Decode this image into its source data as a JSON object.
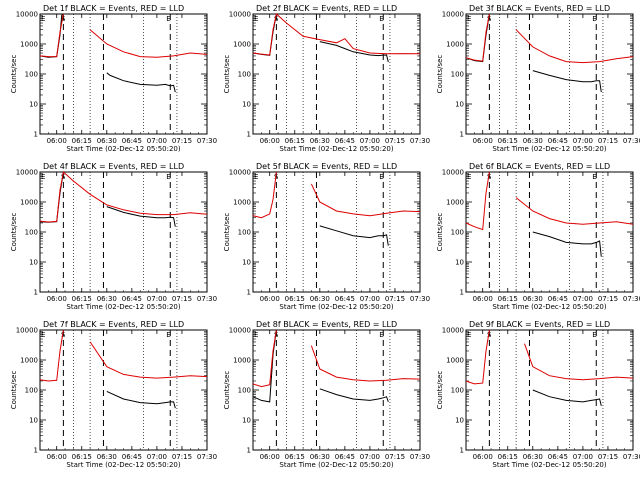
{
  "chart_data": [
    {
      "type": "line",
      "title": "Det 1f BLACK = Events, RED = LLD",
      "xlabel": "Start Time (02-Dec-12 05:50:20)",
      "ylabel": "Counts/sec",
      "yscale": "log",
      "ylim": [
        1,
        10000
      ],
      "xlim": [
        "05:50",
        "07:30"
      ],
      "x_ticks": [
        "06:00",
        "06:15",
        "06:30",
        "06:45",
        "07:00",
        "07:15",
        "07:30"
      ],
      "y_ticks": [
        "1",
        "10",
        "100",
        "1000",
        "10000"
      ],
      "markers": [
        {
          "label": "E",
          "x": "05:50"
        },
        {
          "label": "S",
          "x": "06:02"
        },
        {
          "label": "E",
          "x": "07:05"
        }
      ],
      "series": [
        {
          "color": "#000000",
          "x": [
            "05:50",
            "05:55",
            "06:00",
            "06:02",
            "06:03",
            "06:04",
            "06:10",
            "06:20",
            "06:25",
            "06:27",
            "06:30",
            "06:32",
            "06:40",
            "06:50",
            "07:00",
            "07:05",
            "07:08",
            "07:10",
            "07:11"
          ],
          "y": [
            400,
            360,
            380,
            2000,
            9000,
            12000,
            null,
            null,
            null,
            null,
            110,
            90,
            60,
            45,
            42,
            45,
            40,
            42,
            25
          ]
        },
        {
          "color": "#dd0000",
          "x": [
            "05:50",
            "05:55",
            "06:00",
            "06:02",
            "06:04",
            "06:10",
            "06:20",
            "06:30",
            "06:40",
            "06:50",
            "07:00",
            "07:10",
            "07:20",
            "07:30"
          ],
          "y": [
            400,
            380,
            380,
            2500,
            12000,
            null,
            3000,
            1000,
            550,
            380,
            360,
            400,
            500,
            450
          ]
        }
      ]
    },
    {
      "type": "line",
      "title": "Det 2f BLACK = Events, RED = LLD",
      "xlabel": "Start Time (02-Dec-12 05:50:20)",
      "ylabel": "Counts/sec",
      "yscale": "log",
      "ylim": [
        1,
        10000
      ],
      "xlim": [
        "05:50",
        "07:30"
      ],
      "x_ticks": [
        "06:00",
        "06:15",
        "06:30",
        "06:45",
        "07:00",
        "07:15",
        "07:30"
      ],
      "y_ticks": [
        "1",
        "10",
        "100",
        "1000",
        "10000"
      ],
      "markers": [
        {
          "label": "E",
          "x": "05:50"
        },
        {
          "label": "S",
          "x": "06:02"
        },
        {
          "label": "E",
          "x": "07:05"
        }
      ],
      "series": [
        {
          "color": "#000000",
          "x": [
            "05:50",
            "05:55",
            "06:00",
            "06:02",
            "06:04",
            "06:25",
            "06:27",
            "06:30",
            "06:40",
            "06:45",
            "06:50",
            "07:00",
            "07:05",
            "07:07",
            "07:10",
            "07:11"
          ],
          "y": [
            500,
            450,
            420,
            2500,
            12000,
            null,
            null,
            1200,
            900,
            700,
            550,
            430,
            410,
            420,
            430,
            250
          ]
        },
        {
          "color": "#dd0000",
          "x": [
            "05:50",
            "05:55",
            "06:00",
            "06:02",
            "06:04",
            "06:10",
            "06:20",
            "06:30",
            "06:40",
            "06:45",
            "06:50",
            "07:00",
            "07:10",
            "07:20",
            "07:30"
          ],
          "y": [
            500,
            460,
            430,
            3000,
            12000,
            5000,
            1800,
            1400,
            1100,
            1500,
            700,
            500,
            470,
            480,
            470
          ]
        }
      ]
    },
    {
      "type": "line",
      "title": "Det 3f BLACK = Events, RED = LLD",
      "xlabel": "Start Time (02-Dec-12 05:50:20)",
      "ylabel": "Counts/sec",
      "yscale": "log",
      "ylim": [
        1,
        10000
      ],
      "xlim": [
        "05:50",
        "07:30"
      ],
      "x_ticks": [
        "06:00",
        "06:15",
        "06:30",
        "06:45",
        "07:00",
        "07:15",
        "07:30"
      ],
      "y_ticks": [
        "1",
        "10",
        "100",
        "1000",
        "10000"
      ],
      "markers": [
        {
          "label": "E",
          "x": "05:50"
        },
        {
          "label": "S",
          "x": "06:02"
        },
        {
          "label": "E",
          "x": "07:05"
        }
      ],
      "series": [
        {
          "color": "#000000",
          "x": [
            "05:50",
            "05:55",
            "06:00",
            "06:02",
            "06:04",
            "06:25",
            "06:27",
            "06:30",
            "06:40",
            "06:50",
            "07:00",
            "07:05",
            "07:08",
            "07:10",
            "07:11"
          ],
          "y": [
            350,
            280,
            260,
            2000,
            12000,
            null,
            null,
            130,
            90,
            65,
            55,
            55,
            60,
            60,
            25
          ]
        },
        {
          "color": "#dd0000",
          "x": [
            "05:50",
            "05:55",
            "06:00",
            "06:02",
            "06:04",
            "06:10",
            "06:20",
            "06:30",
            "06:40",
            "06:50",
            "07:00",
            "07:10",
            "07:20",
            "07:30"
          ],
          "y": [
            350,
            290,
            270,
            2500,
            12000,
            null,
            3000,
            800,
            400,
            260,
            240,
            260,
            320,
            380
          ]
        }
      ]
    },
    {
      "type": "line",
      "title": "Det 4f BLACK = Events, RED = LLD",
      "xlabel": "Start Time (02-Dec-12 05:50:20)",
      "ylabel": "Counts/sec",
      "yscale": "log",
      "ylim": [
        1,
        10000
      ],
      "xlim": [
        "05:50",
        "07:30"
      ],
      "x_ticks": [
        "06:00",
        "06:15",
        "06:30",
        "06:45",
        "07:00",
        "07:15",
        "07:30"
      ],
      "y_ticks": [
        "1",
        "10",
        "100",
        "1000",
        "10000"
      ],
      "markers": [
        {
          "label": "E",
          "x": "05:50"
        },
        {
          "label": "S",
          "x": "06:02"
        },
        {
          "label": "E",
          "x": "07:05"
        }
      ],
      "series": [
        {
          "color": "#000000",
          "x": [
            "05:50",
            "05:55",
            "06:00",
            "06:02",
            "06:04",
            "06:25",
            "06:27",
            "06:30",
            "06:40",
            "06:50",
            "07:00",
            "07:05",
            "07:08",
            "07:10",
            "07:11"
          ],
          "y": [
            220,
            210,
            220,
            2000,
            12000,
            null,
            null,
            700,
            450,
            340,
            300,
            300,
            310,
            300,
            150
          ]
        },
        {
          "color": "#dd0000",
          "x": [
            "05:50",
            "05:55",
            "06:00",
            "06:02",
            "06:04",
            "06:10",
            "06:20",
            "06:30",
            "06:40",
            "06:50",
            "07:00",
            "07:10",
            "07:20",
            "07:30"
          ],
          "y": [
            230,
            215,
            225,
            2500,
            12000,
            5000,
            1800,
            800,
            550,
            420,
            380,
            380,
            440,
            390
          ]
        }
      ]
    },
    {
      "type": "line",
      "title": "Det 5f BLACK = Events, RED = LLD",
      "xlabel": "Start Time (02-Dec-12 05:50:20)",
      "ylabel": "Counts/sec",
      "yscale": "log",
      "ylim": [
        1,
        10000
      ],
      "xlim": [
        "05:50",
        "07:30"
      ],
      "x_ticks": [
        "06:00",
        "06:15",
        "06:30",
        "06:45",
        "07:00",
        "07:15",
        "07:30"
      ],
      "y_ticks": [
        "1",
        "10",
        "100",
        "1000",
        "10000"
      ],
      "markers": [
        {
          "label": "E",
          "x": "05:50"
        },
        {
          "label": "S",
          "x": "06:02"
        },
        {
          "label": "E",
          "x": "07:05"
        }
      ],
      "series": [
        {
          "color": "#000000",
          "x": [
            "05:50",
            "05:55",
            "06:00",
            "06:02",
            "06:04",
            "06:25",
            "06:27",
            "06:30",
            "06:40",
            "06:50",
            "07:00",
            "07:05",
            "07:08",
            "07:10",
            "07:11"
          ],
          "y": [
            null,
            null,
            null,
            null,
            null,
            null,
            null,
            160,
            110,
            75,
            65,
            75,
            75,
            80,
            35
          ]
        },
        {
          "color": "#dd0000",
          "x": [
            "05:50",
            "05:55",
            "06:00",
            "06:02",
            "06:04",
            "06:20",
            "06:25",
            "06:30",
            "06:40",
            "06:50",
            "07:00",
            "07:10",
            "07:20",
            "07:30"
          ],
          "y": [
            350,
            300,
            400,
            1200,
            12000,
            null,
            4000,
            1000,
            500,
            400,
            350,
            420,
            500,
            480
          ]
        }
      ]
    },
    {
      "type": "line",
      "title": "Det 6f BLACK = Events, RED = LLD",
      "xlabel": "Start Time (02-Dec-12 05:50:20)",
      "ylabel": "Counts/sec",
      "yscale": "log",
      "ylim": [
        1,
        10000
      ],
      "xlim": [
        "05:50",
        "07:30"
      ],
      "x_ticks": [
        "06:00",
        "06:15",
        "06:30",
        "06:45",
        "07:00",
        "07:15",
        "07:30"
      ],
      "y_ticks": [
        "1",
        "10",
        "100",
        "1000",
        "10000"
      ],
      "markers": [
        {
          "label": "E",
          "x": "05:50"
        },
        {
          "label": "S",
          "x": "06:02"
        },
        {
          "label": "E",
          "x": "07:05"
        }
      ],
      "series": [
        {
          "color": "#000000",
          "x": [
            "05:50",
            "05:55",
            "06:00",
            "06:02",
            "06:04",
            "06:25",
            "06:27",
            "06:30",
            "06:40",
            "06:50",
            "07:00",
            "07:05",
            "07:08",
            "07:10",
            "07:11"
          ],
          "y": [
            null,
            null,
            null,
            null,
            null,
            null,
            null,
            100,
            70,
            45,
            40,
            40,
            45,
            50,
            15
          ]
        },
        {
          "color": "#dd0000",
          "x": [
            "05:50",
            "05:55",
            "06:00",
            "06:02",
            "06:04",
            "06:10",
            "06:20",
            "06:30",
            "06:40",
            "06:50",
            "07:00",
            "07:10",
            "07:20",
            "07:30"
          ],
          "y": [
            200,
            150,
            120,
            2000,
            12000,
            null,
            1400,
            500,
            280,
            200,
            180,
            200,
            220,
            180
          ]
        }
      ]
    },
    {
      "type": "line",
      "title": "Det 7f BLACK = Events, RED = LLD",
      "xlabel": "Start Time (02-Dec-12 05:50:20)",
      "ylabel": "Counts/sec",
      "yscale": "log",
      "ylim": [
        1,
        10000
      ],
      "xlim": [
        "05:50",
        "07:30"
      ],
      "x_ticks": [
        "06:00",
        "06:15",
        "06:30",
        "06:45",
        "07:00",
        "07:15",
        "07:30"
      ],
      "y_ticks": [
        "1",
        "10",
        "100",
        "1000",
        "10000"
      ],
      "markers": [
        {
          "label": "E",
          "x": "05:50"
        },
        {
          "label": "S",
          "x": "06:02"
        },
        {
          "label": "E",
          "x": "07:05"
        }
      ],
      "series": [
        {
          "color": "#000000",
          "x": [
            "05:50",
            "05:55",
            "06:00",
            "06:02",
            "06:04",
            "06:25",
            "06:27",
            "06:30",
            "06:40",
            "06:50",
            "07:00",
            "07:05",
            "07:08",
            "07:10",
            "07:11"
          ],
          "y": [
            null,
            null,
            null,
            null,
            null,
            null,
            null,
            90,
            50,
            38,
            35,
            38,
            40,
            40,
            25
          ]
        },
        {
          "color": "#dd0000",
          "x": [
            "05:50",
            "05:55",
            "06:00",
            "06:02",
            "06:04",
            "06:10",
            "06:20",
            "06:30",
            "06:40",
            "06:50",
            "07:00",
            "07:10",
            "07:20",
            "07:30"
          ],
          "y": [
            220,
            200,
            210,
            2000,
            12000,
            null,
            4000,
            600,
            330,
            270,
            250,
            270,
            300,
            280
          ]
        }
      ]
    },
    {
      "type": "line",
      "title": "Det 8f BLACK = Events, RED = LLD",
      "xlabel": "Start Time (02-Dec-12 05:50:20)",
      "ylabel": "Counts/sec",
      "yscale": "log",
      "ylim": [
        1,
        10000
      ],
      "xlim": [
        "05:50",
        "07:30"
      ],
      "x_ticks": [
        "06:00",
        "06:15",
        "06:30",
        "06:45",
        "07:00",
        "07:15",
        "07:30"
      ],
      "y_ticks": [
        "1",
        "10",
        "100",
        "1000",
        "10000"
      ],
      "markers": [
        {
          "label": "E",
          "x": "05:50"
        },
        {
          "label": "S",
          "x": "06:02"
        },
        {
          "label": "E",
          "x": "07:05"
        }
      ],
      "series": [
        {
          "color": "#000000",
          "x": [
            "05:50",
            "05:55",
            "06:00",
            "06:02",
            "06:04",
            "06:25",
            "06:27",
            "06:30",
            "06:40",
            "06:50",
            "07:00",
            "07:05",
            "07:08",
            "07:10",
            "07:11"
          ],
          "y": [
            60,
            45,
            40,
            1500,
            12000,
            null,
            null,
            110,
            70,
            50,
            45,
            50,
            55,
            60,
            40
          ]
        },
        {
          "color": "#dd0000",
          "x": [
            "05:50",
            "05:55",
            "06:00",
            "06:02",
            "06:04",
            "06:20",
            "06:25",
            "06:30",
            "06:40",
            "06:50",
            "07:00",
            "07:10",
            "07:20",
            "07:30"
          ],
          "y": [
            160,
            130,
            150,
            2000,
            12000,
            null,
            3000,
            500,
            270,
            220,
            200,
            210,
            240,
            230
          ]
        }
      ]
    },
    {
      "type": "line",
      "title": "Det 9f BLACK = Events, RED = LLD",
      "xlabel": "Start Time (02-Dec-12 05:50:20)",
      "ylabel": "Counts/sec",
      "yscale": "log",
      "ylim": [
        1,
        10000
      ],
      "xlim": [
        "05:50",
        "07:30"
      ],
      "x_ticks": [
        "06:00",
        "06:15",
        "06:30",
        "06:45",
        "07:00",
        "07:15",
        "07:30"
      ],
      "y_ticks": [
        "1",
        "10",
        "100",
        "1000",
        "10000"
      ],
      "markers": [
        {
          "label": "E",
          "x": "05:50"
        },
        {
          "label": "S",
          "x": "06:02"
        },
        {
          "label": "E",
          "x": "07:05"
        }
      ],
      "series": [
        {
          "color": "#000000",
          "x": [
            "05:50",
            "05:55",
            "06:00",
            "06:02",
            "06:04",
            "06:25",
            "06:27",
            "06:30",
            "06:40",
            "06:50",
            "07:00",
            "07:05",
            "07:08",
            "07:10",
            "07:11"
          ],
          "y": [
            null,
            null,
            null,
            null,
            null,
            null,
            null,
            100,
            60,
            45,
            40,
            45,
            48,
            50,
            30
          ]
        },
        {
          "color": "#dd0000",
          "x": [
            "05:50",
            "05:55",
            "06:00",
            "06:02",
            "06:04",
            "06:20",
            "06:25",
            "06:30",
            "06:40",
            "06:50",
            "07:00",
            "07:10",
            "07:20",
            "07:30"
          ],
          "y": [
            200,
            160,
            170,
            2000,
            12000,
            null,
            3500,
            600,
            300,
            240,
            220,
            240,
            270,
            250
          ]
        }
      ]
    }
  ]
}
